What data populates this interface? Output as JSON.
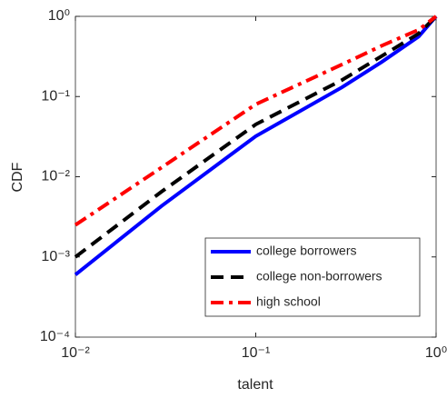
{
  "chart_data": {
    "type": "line",
    "xlabel": "talent",
    "ylabel": "CDF",
    "xlog": true,
    "ylog": true,
    "xlim": [
      0.01,
      1
    ],
    "ylim": [
      0.0001,
      1
    ],
    "xticks": [
      {
        "value": 0.01,
        "label": "10⁻²"
      },
      {
        "value": 0.1,
        "label": "10⁻¹"
      },
      {
        "value": 1,
        "label": "10⁰"
      }
    ],
    "yticks": [
      {
        "value": 0.0001,
        "label": "10⁻⁴"
      },
      {
        "value": 0.001,
        "label": "10⁻³"
      },
      {
        "value": 0.01,
        "label": "10⁻²"
      },
      {
        "value": 0.1,
        "label": "10⁻¹"
      },
      {
        "value": 1,
        "label": "10⁰"
      }
    ],
    "legend": "lower right",
    "x": [
      0.01,
      0.03,
      0.1,
      0.3,
      0.5,
      0.8,
      1
    ],
    "series": [
      {
        "name": "college borrowers",
        "color": "#0000ff",
        "style": "solid",
        "values": [
          0.0006,
          0.0043,
          0.032,
          0.13,
          0.27,
          0.56,
          1
        ]
      },
      {
        "name": "college non-borrowers",
        "color": "#000000",
        "style": "dashed",
        "values": [
          0.001,
          0.0065,
          0.045,
          0.16,
          0.32,
          0.61,
          1
        ]
      },
      {
        "name": "high school",
        "color": "#ff0000",
        "style": "dashdot",
        "values": [
          0.0025,
          0.013,
          0.08,
          0.25,
          0.43,
          0.68,
          1
        ]
      }
    ]
  }
}
